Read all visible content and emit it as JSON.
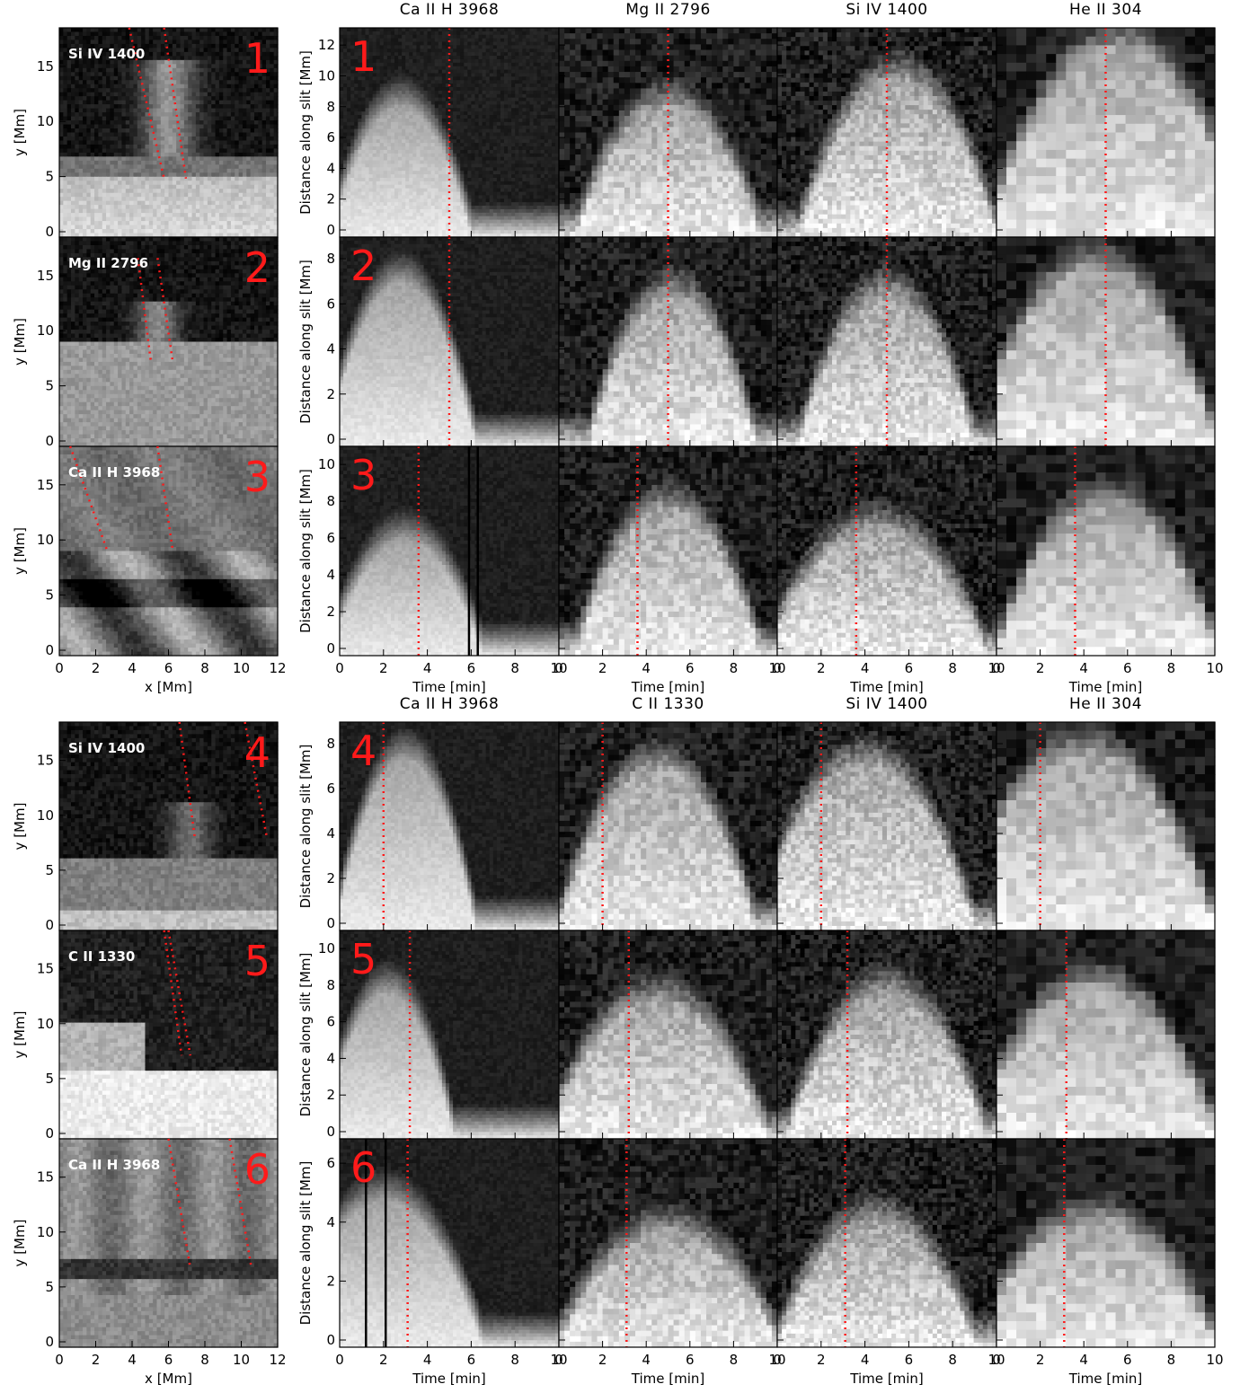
{
  "figure": {
    "groups": [
      {
        "columns": [
          "Ca II H 3968",
          "Mg II 2796",
          "Si IV 1400",
          "He II 304"
        ],
        "rows": [
          {
            "number": "1",
            "map_label": "Si IV 1400",
            "ylabel": "Distance along slit [Mm]",
            "yticks": [
              "0",
              "2",
              "4",
              "6",
              "8",
              "10",
              "12"
            ],
            "mark_t": 5.0,
            "dark_lines": []
          },
          {
            "number": "2",
            "map_label": "Mg II 2796",
            "ylabel": "Distance along slit [Mm]",
            "yticks": [
              "0",
              "2",
              "4",
              "6",
              "8"
            ],
            "mark_t": 5.0,
            "dark_lines": []
          },
          {
            "number": "3",
            "map_label": "Ca II H 3968",
            "ylabel": "Distance along slit [Mm]",
            "yticks": [
              "0",
              "2",
              "4",
              "6",
              "8",
              "10"
            ],
            "mark_t": 3.6,
            "dark_lines": [
              5.9,
              6.3
            ]
          }
        ]
      },
      {
        "columns": [
          "Ca II H 3968",
          "C II 1330",
          "Si IV 1400",
          "He II 304"
        ],
        "rows": [
          {
            "number": "4",
            "map_label": "Si IV 1400",
            "ylabel": "Distance along slit [Mm]",
            "yticks": [
              "0",
              "2",
              "4",
              "6",
              "8"
            ],
            "mark_t": 2.0,
            "dark_lines": []
          },
          {
            "number": "5",
            "map_label": "C II 1330",
            "ylabel": "Distance along slit [Mm]",
            "yticks": [
              "0",
              "2",
              "4",
              "6",
              "8",
              "10"
            ],
            "mark_t": 3.2,
            "dark_lines": []
          },
          {
            "number": "6",
            "map_label": "Ca II H 3968",
            "ylabel": "Distance along slit [Mm]",
            "yticks": [
              "0",
              "2",
              "4",
              "6"
            ],
            "mark_t": 3.1,
            "dark_lines": [
              1.2,
              2.1
            ]
          }
        ]
      }
    ],
    "map_axes": {
      "xlabel": "x [Mm]",
      "ylabel": "y [Mm]",
      "xticks": [
        "0",
        "2",
        "4",
        "6",
        "8",
        "10",
        "12"
      ],
      "yticks": [
        "0",
        "5",
        "10",
        "15"
      ]
    },
    "time_axis": {
      "xlabel": "Time [min]",
      "xticks": [
        "0",
        "2",
        "4",
        "6",
        "8",
        "10"
      ]
    },
    "colors": {
      "marker": "#ff1a1a",
      "frame": "#000000",
      "label_on_image": "#ffffff"
    }
  }
}
